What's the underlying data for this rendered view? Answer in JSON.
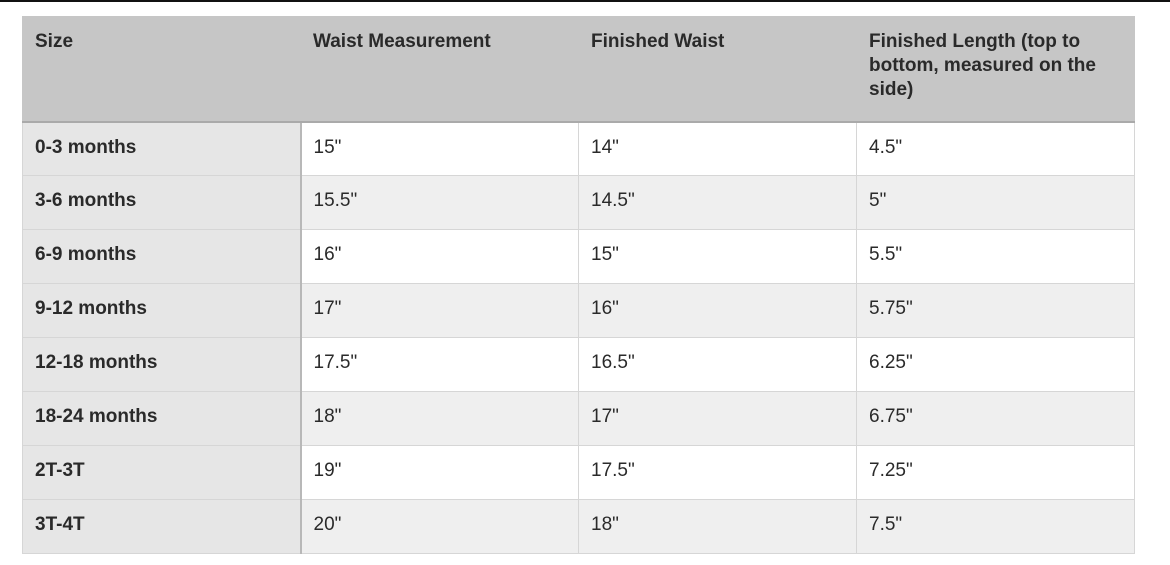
{
  "table": {
    "headers": [
      "Size",
      "Waist Measurement",
      "Finished Waist",
      "Finished Length (top to bottom, measured on the side)"
    ],
    "rows": [
      [
        "0-3 months",
        "15\"",
        "14\"",
        "4.5\""
      ],
      [
        "3-6 months",
        "15.5\"",
        "14.5\"",
        "5\""
      ],
      [
        "6-9 months",
        "16\"",
        "15\"",
        "5.5\""
      ],
      [
        "9-12 months",
        "17\"",
        "16\"",
        "5.75\""
      ],
      [
        "12-18 months",
        "17.5\"",
        "16.5\"",
        "6.25\""
      ],
      [
        "18-24 months",
        "18\"",
        "17\"",
        "6.75\""
      ],
      [
        "2T-3T",
        "19\"",
        "17.5\"",
        "7.25\""
      ],
      [
        "3T-4T",
        "20\"",
        "18\"",
        "7.5\""
      ]
    ]
  }
}
